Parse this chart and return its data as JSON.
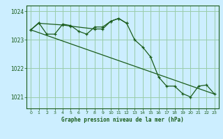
{
  "title": "Graphe pression niveau de la mer (hPa)",
  "background_color": "#cceeff",
  "grid_color": "#99ccaa",
  "line_color": "#1a5c1a",
  "xlim": [
    -0.5,
    23.5
  ],
  "ylim": [
    1020.6,
    1024.2
  ],
  "yticks": [
    1021,
    1022,
    1023,
    1024
  ],
  "xticks": [
    0,
    1,
    2,
    3,
    4,
    5,
    6,
    7,
    8,
    9,
    10,
    11,
    12,
    13,
    14,
    15,
    16,
    17,
    18,
    19,
    20,
    21,
    22,
    23
  ],
  "line1_x": [
    0,
    1,
    2,
    3,
    4,
    5,
    6,
    7,
    8,
    9,
    10,
    11,
    12,
    13,
    14,
    15,
    16,
    17,
    18,
    19,
    20,
    21,
    22,
    23
  ],
  "line1_y": [
    1023.35,
    1023.6,
    1023.2,
    1023.2,
    1023.55,
    1023.5,
    1023.3,
    1023.2,
    1023.45,
    1023.45,
    1023.65,
    1023.75,
    1023.58,
    1023.0,
    1022.75,
    1022.4,
    1021.7,
    1021.38,
    1021.38,
    1021.12,
    1021.0,
    1021.38,
    1021.42,
    1021.1
  ],
  "line2_x": [
    0,
    1,
    4,
    5,
    8,
    9,
    10,
    11,
    12
  ],
  "line2_y": [
    1023.35,
    1023.58,
    1023.52,
    1023.48,
    1023.38,
    1023.38,
    1023.65,
    1023.75,
    1023.58
  ],
  "line3_x": [
    0,
    23
  ],
  "line3_y": [
    1023.35,
    1021.1
  ]
}
